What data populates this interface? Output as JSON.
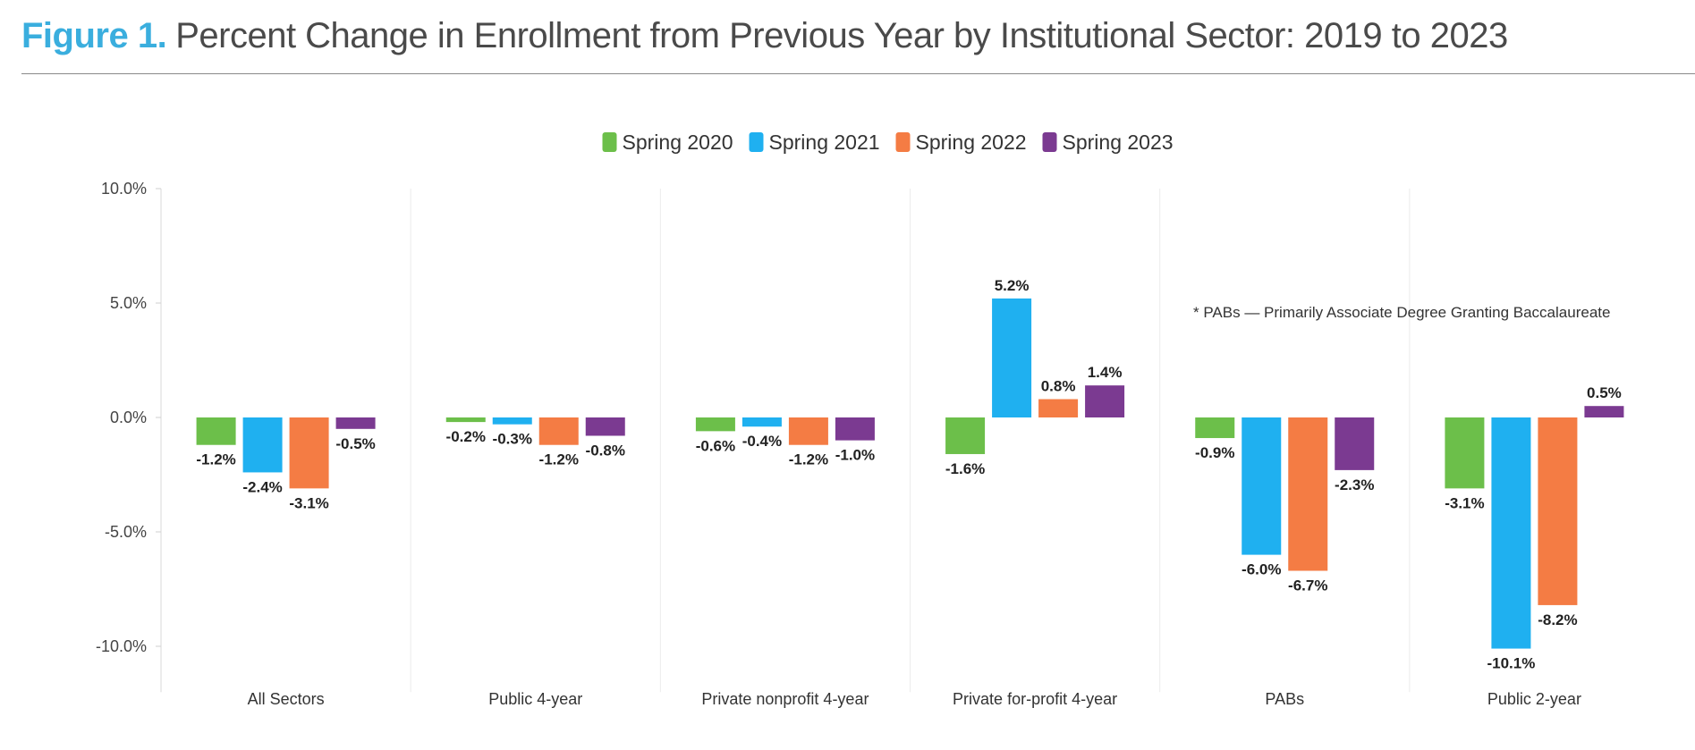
{
  "header": {
    "figure_label": "Figure 1.",
    "title": "Percent Change in Enrollment from Previous Year by Institutional Sector: 2019 to 2023"
  },
  "note": "* PABs — Primarily Associate Degree Granting Baccalaureate",
  "chart_data": {
    "type": "bar",
    "title": "Percent Change in Enrollment from Previous Year by Institutional Sector: 2019 to 2023",
    "xlabel": "",
    "ylabel": "",
    "ylim": [
      -12,
      10
    ],
    "yticks": [
      10,
      5,
      0,
      -5,
      -10
    ],
    "ytick_labels": [
      "10.0%",
      "5.0%",
      "0.0%",
      "-5.0%",
      "-10.0%"
    ],
    "grid": false,
    "legend_position": "top-center",
    "categories": [
      "All Sectors",
      "Public 4-year",
      "Private nonprofit 4-year",
      "Private for-profit 4-year",
      "PABs",
      "Public 2-year"
    ],
    "series": [
      {
        "name": "Spring 2020",
        "color": "#6cbf4a",
        "values": [
          -1.2,
          -0.2,
          -0.6,
          -1.6,
          -0.9,
          -3.1
        ],
        "labels": [
          "-1.2%",
          "-0.2%",
          "-0.6%",
          "-1.6%",
          "-0.9%",
          "-3.1%"
        ]
      },
      {
        "name": "Spring 2021",
        "color": "#1fb0f0",
        "values": [
          -2.4,
          -0.3,
          -0.4,
          5.2,
          -6.0,
          -10.1
        ],
        "labels": [
          "-2.4%",
          "-0.3%",
          "-0.4%",
          "5.2%",
          "-6.0%",
          "-10.1%"
        ]
      },
      {
        "name": "Spring 2022",
        "color": "#f47c44",
        "values": [
          -3.1,
          -1.2,
          -1.2,
          0.8,
          -6.7,
          -8.2
        ],
        "labels": [
          "-3.1%",
          "-1.2%",
          "-1.2%",
          "0.8%",
          "-6.7%",
          "-8.2%"
        ]
      },
      {
        "name": "Spring 2023",
        "color": "#7b3a91",
        "values": [
          -0.5,
          -0.8,
          -1.0,
          1.4,
          -2.3,
          0.5
        ],
        "labels": [
          "-0.5%",
          "-0.8%",
          "-1.0%",
          "1.4%",
          "-2.3%",
          "0.5%"
        ]
      }
    ]
  }
}
